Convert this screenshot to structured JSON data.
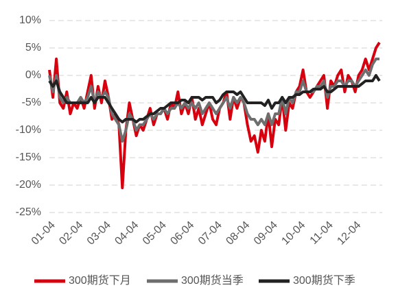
{
  "chart_data": {
    "type": "line",
    "categories": [
      "01-04",
      null,
      null,
      null,
      null,
      null,
      null,
      null,
      "02-04",
      null,
      null,
      null,
      null,
      null,
      null,
      null,
      "03-04",
      null,
      null,
      null,
      null,
      null,
      null,
      null,
      "04-04",
      null,
      null,
      null,
      null,
      null,
      null,
      null,
      "05-04",
      null,
      null,
      null,
      null,
      null,
      null,
      null,
      "06-04",
      null,
      null,
      null,
      null,
      null,
      null,
      null,
      "07-04",
      null,
      null,
      null,
      null,
      null,
      null,
      null,
      "08-04",
      null,
      null,
      null,
      null,
      null,
      null,
      null,
      "09-04",
      null,
      null,
      null,
      null,
      null,
      null,
      null,
      "10-04",
      null,
      null,
      null,
      null,
      null,
      null,
      null,
      "11-04",
      null,
      null,
      null,
      null,
      null,
      null,
      null,
      "12-04",
      null,
      null,
      null,
      null,
      null,
      null,
      null
    ],
    "series": [
      {
        "name": "300期货下月",
        "color": "#d7000f",
        "values": [
          1,
          -4,
          3,
          -5,
          -6,
          -3,
          -7,
          -5,
          -6,
          -4,
          -6,
          -3,
          0,
          -6,
          -2,
          -5,
          -1,
          -4,
          -8,
          -7,
          -9,
          -20.5,
          -10,
          -5,
          -8,
          -11,
          -9,
          -10,
          -8,
          -6,
          -9,
          -7,
          -7,
          -6,
          -8,
          -5,
          -6,
          -3,
          -7,
          -5,
          -7,
          -4,
          -8,
          -6,
          -9,
          -7,
          -5,
          -8,
          -9,
          -6,
          -5,
          -3,
          -8,
          -4,
          -6,
          -4,
          -5,
          -9,
          -12,
          -11,
          -14,
          -10,
          -12,
          -7,
          -13,
          -8,
          -9,
          -4,
          -10,
          -5,
          -6,
          -3,
          -2,
          1,
          -3,
          -4,
          -3,
          -2,
          -1,
          0,
          -6,
          -1,
          -2,
          0,
          1,
          -3,
          0,
          -1,
          -3,
          0,
          1,
          3,
          1,
          3,
          5,
          6
        ]
      },
      {
        "name": "300期货当季",
        "color": "#6e6e6e",
        "values": [
          0,
          -3,
          0,
          -4,
          -5,
          -4,
          -5,
          -5,
          -5,
          -4,
          -5,
          -4,
          -2,
          -5,
          -3,
          -4,
          -3,
          -4,
          -7,
          -8,
          -9,
          -12,
          -10,
          -7,
          -8,
          -10,
          -9,
          -9,
          -8,
          -7,
          -8,
          -7,
          -7,
          -6,
          -7,
          -6,
          -6,
          -5,
          -6,
          -5,
          -6,
          -5,
          -6,
          -5,
          -7,
          -6,
          -5,
          -6,
          -7,
          -6,
          -5,
          -4,
          -6,
          -4,
          -5,
          -4,
          -5,
          -7,
          -8,
          -8,
          -9,
          -8,
          -9,
          -7,
          -9,
          -7,
          -7,
          -4,
          -7,
          -4,
          -5,
          -3,
          -3,
          -1,
          -3,
          -3,
          -3,
          -2,
          -2,
          -1,
          -4,
          -2,
          -2,
          -1,
          -1,
          -2,
          -1,
          -1,
          -2,
          -1,
          0,
          1,
          0,
          2,
          3,
          3
        ]
      },
      {
        "name": "300期货下季",
        "color": "#222222",
        "values": [
          -1,
          -2,
          -1,
          -3,
          -4,
          -5,
          -5,
          -5,
          -5,
          -5,
          -5,
          -5,
          -4,
          -5,
          -4,
          -4,
          -4,
          -5,
          -6,
          -7,
          -8,
          -8.5,
          -8,
          -8,
          -8,
          -8.5,
          -8,
          -8,
          -7.5,
          -7,
          -7,
          -6.5,
          -6,
          -6,
          -5.5,
          -5,
          -5,
          -5,
          -4.5,
          -4.5,
          -5,
          -4,
          -4,
          -4,
          -4.5,
          -4,
          -4,
          -4,
          -5,
          -4.5,
          -3.5,
          -3,
          -3,
          -3,
          -3.5,
          -3,
          -4,
          -5,
          -5,
          -5,
          -5,
          -5,
          -5.5,
          -4.5,
          -6,
          -5,
          -5,
          -4,
          -5,
          -4,
          -4,
          -3.5,
          -3.5,
          -3,
          -3,
          -3,
          -2.5,
          -2.5,
          -2.5,
          -2,
          -3,
          -3,
          -2.5,
          -2,
          -2,
          -2,
          -2,
          -2,
          -2,
          -2,
          -1.5,
          -1,
          -1,
          -1,
          0,
          -1
        ]
      }
    ],
    "ylim": [
      -25,
      10
    ],
    "yticks": [
      {
        "value": -25,
        "label": "-25%"
      },
      {
        "value": -20,
        "label": "-20%"
      },
      {
        "value": -15,
        "label": "-15%"
      },
      {
        "value": -10,
        "label": "-10%"
      },
      {
        "value": -5,
        "label": "-5%"
      },
      {
        "value": 0,
        "label": "0%"
      },
      {
        "value": 5,
        "label": "5%"
      },
      {
        "value": 10,
        "label": "10%"
      }
    ],
    "grid": true,
    "legend": "bottom"
  }
}
